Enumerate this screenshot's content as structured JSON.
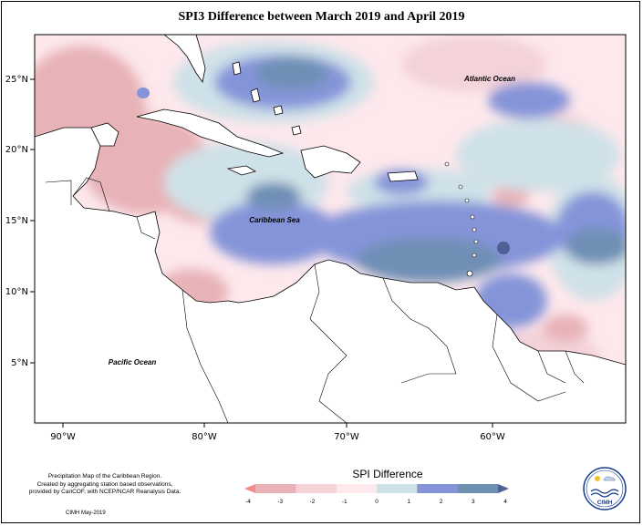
{
  "title": "SPI3 Difference between March 2019 and April 2019",
  "map": {
    "lat_ticks": [
      "25°N",
      "20°N",
      "15°N",
      "10°N",
      "5°N"
    ],
    "lon_ticks": [
      "90°W",
      "80°W",
      "70°W",
      "60°W"
    ],
    "ocean_labels": {
      "atlantic": "Atlantic Ocean",
      "caribbean": "Caribbean Sea",
      "pacific": "Pacific Ocean"
    },
    "region": "Caribbean"
  },
  "legend": {
    "title": "SPI Difference",
    "ticks": [
      "-4",
      "-3",
      "-2",
      "-1",
      "0",
      "1",
      "2",
      "3",
      "4"
    ],
    "colors": [
      "#f28a8a",
      "#e7b3b7",
      "#f3d2d8",
      "#fde8ec",
      "#cfe1e8",
      "#8594d9",
      "#6f8fb5",
      "#515f97"
    ]
  },
  "footnote": {
    "line1": "Precipitation Map of the Caribbean Region.",
    "line2": "Created by aggregating station based observations,",
    "line3": "provided by CariCOF, with NCEP/NCAR Reanalysis Data.",
    "credit": "CIMH May-2019"
  },
  "logo": {
    "text": "CIMH"
  }
}
